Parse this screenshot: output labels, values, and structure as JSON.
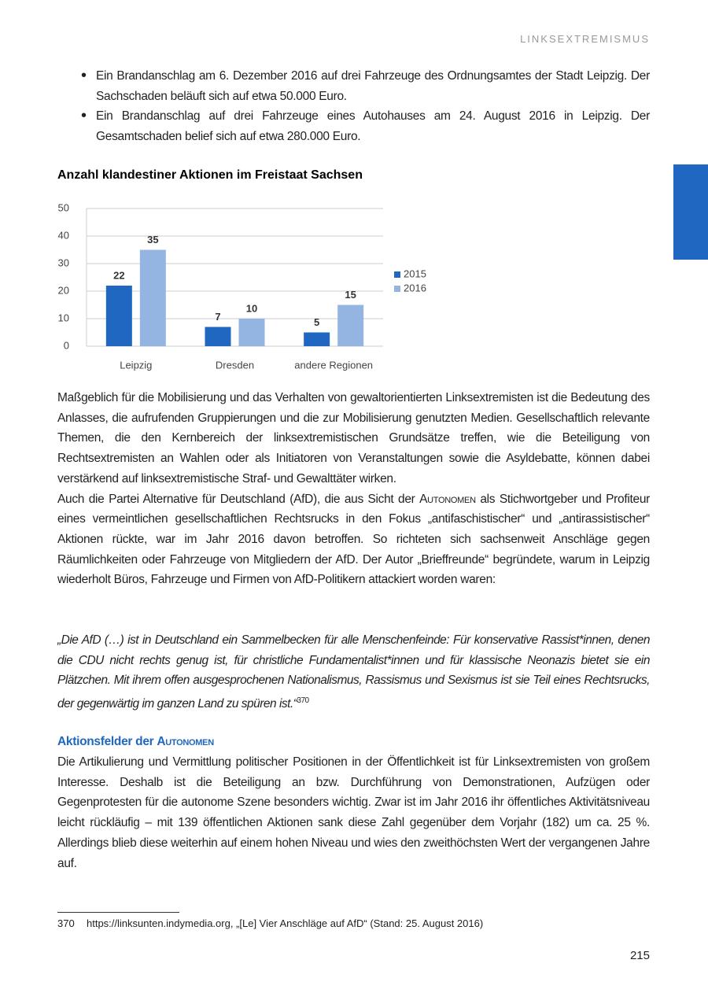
{
  "header": {
    "running_title": "LINKSEXTREMISMUS"
  },
  "bullets": [
    "Ein Brandanschlag am 6. Dezember 2016 auf drei Fahrzeuge des Ordnungsamtes der Stadt Leipzig. Der Sachschaden beläuft sich auf etwa 50.000 Euro.",
    "Ein Brandanschlag auf drei Fahrzeuge eines Autohauses am 24. August 2016 in Leipzig. Der Gesamtschaden belief sich auf etwa 280.000 Euro."
  ],
  "chart_data": {
    "type": "bar",
    "title": "Anzahl klandestiner Aktionen im Freistaat Sachsen",
    "categories": [
      "Leipzig",
      "Dresden",
      "andere Regionen"
    ],
    "series": [
      {
        "name": "2015",
        "color": "#1f67c0",
        "values": [
          22,
          7,
          5
        ]
      },
      {
        "name": "2016",
        "color": "#94b4e2",
        "values": [
          35,
          10,
          15
        ]
      }
    ],
    "ylim": [
      0,
      50
    ],
    "yticks": [
      0,
      10,
      20,
      30,
      40,
      50
    ],
    "grid": true,
    "legend": "right"
  },
  "paragraphs": [
    "Maßgeblich für die Mobilisierung und das Verhalten von gewaltorientierten Linksextremisten ist die Bedeutung des Anlasses, die aufrufenden Gruppierungen und die zur Mobilisierung genutzten Medien. Gesellschaftlich relevante Themen, die den Kernbereich der linksextremistischen Grundsätze treffen, wie die Beteiligung von Rechtsextremisten an Wahlen oder als Initiatoren von Veranstaltungen sowie die Asyldebatte, können dabei verstärkend auf linksextremistische Straf- und Gewalttäter wirken.",
    {
      "before": "Auch die Partei Alternative für Deutschland (AfD), die aus Sicht der",
      "smallcaps": "Autonomen",
      "after": "als Stichwortgeber und Profiteur eines vermeintlichen gesellschaftlichen Rechtsrucks in den Fokus „antifaschistischer“ und „antirassistischer“ Aktionen rückte, war im Jahr 2016 davon betroffen. So richteten sich sachsenweit Anschläge gegen Räumlichkeiten oder Fahrzeuge von Mitgliedern der AfD. Der Autor „Brieffreunde“ begründete, warum in Leipzig wiederholt Büros, Fahrzeuge und Firmen von AfD-Politikern attackiert worden waren:"
    }
  ],
  "quote": {
    "text": "„Die AfD (…) ist in Deutschland ein Sammelbecken für alle Menschenfeinde: Für konservative Rassist*innen, denen die CDU nicht rechts genug ist, für christliche Fundamentalist*innen und für klassische Neonazis bietet sie ein Plätzchen. Mit ihrem offen ausgesprochenen Nationalismus, Rassismus und Sexismus ist sie Teil eines Rechtsrucks, der gegenwärtig im ganzen Land zu spüren ist.“",
    "footnote_ref": "370"
  },
  "section": {
    "heading_prefix": "Aktionsfelder der",
    "heading_smallcaps": "Autonomen",
    "text": "Die Artikulierung und Vermittlung politischer Positionen in der Öffentlichkeit ist für Linksextremisten von großem Interesse. Deshalb ist die Beteiligung an bzw. Durchführung von Demonstrationen, Aufzügen oder Gegenprotesten für die autonome Szene besonders wichtig. Zwar ist im Jahr 2016 ihr öffentliches Aktivitätsniveau leicht rückläufig – mit 139 öffentlichen Aktionen sank diese Zahl gegenüber dem Vorjahr (182) um ca. 25 %. Allerdings blieb diese weiterhin auf einem hohen Niveau und wies den zweithöchsten Wert der vergangenen Jahre auf."
  },
  "footnote": {
    "number": "370",
    "text": "https://linksunten.indymedia.org, „[Le] Vier Anschläge auf AfD“ (Stand: 25. August 2016)"
  },
  "page_number": "215"
}
